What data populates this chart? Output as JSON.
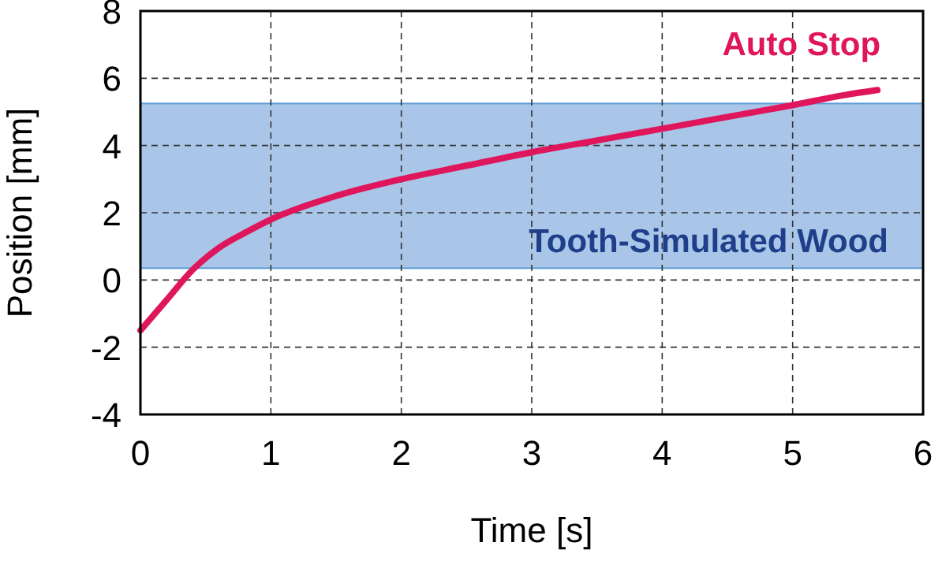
{
  "chart_data": {
    "type": "line",
    "xlabel": "Time [s]",
    "ylabel": "Position [mm]",
    "xlim": [
      0,
      6
    ],
    "xticks": [
      0,
      1,
      2,
      3,
      4,
      5,
      6
    ],
    "ylim": [
      -4,
      8
    ],
    "yticks": [
      -4,
      -2,
      0,
      2,
      4,
      6,
      8
    ],
    "grid": true,
    "line_style": "solid",
    "legend": false,
    "series": [
      {
        "name": "Auto Stop",
        "color": "#e0165c",
        "x": [
          0,
          0.2,
          0.4,
          0.6,
          0.8,
          1,
          1.5,
          2,
          2.5,
          3,
          3.5,
          4,
          4.5,
          5,
          5.4,
          5.65
        ],
        "values": [
          -1.5,
          -0.6,
          0.3,
          0.95,
          1.4,
          1.8,
          2.5,
          3.0,
          3.4,
          3.8,
          4.15,
          4.5,
          4.85,
          5.2,
          5.5,
          5.65
        ]
      }
    ],
    "bands": [
      {
        "axis": "y",
        "from": 0.35,
        "to": 5.25,
        "label": "Tooth-Simulated Wood",
        "color": "#a9c6e8"
      }
    ]
  }
}
